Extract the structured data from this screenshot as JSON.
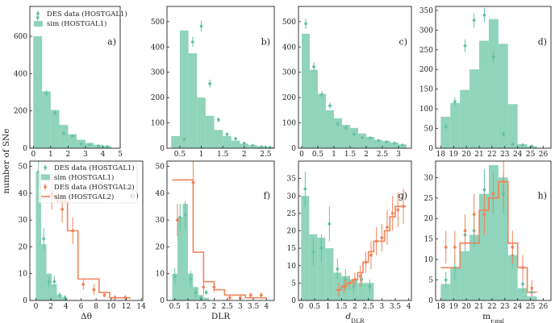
{
  "colors": {
    "green": "#66c2a5",
    "hist": "#8fd4bb",
    "orange": "#f0845a"
  },
  "ylabel": "number of SNe",
  "legend_top": [
    "DES data (HOSTGAL1)",
    "sim (HOSTGAL1)"
  ],
  "legend_bottom": [
    "DES data (HOSTGAL1)",
    "sim (HOSTGAL1)",
    "DES data (HOSTGAL2)",
    "sim (HOSTGAL2)"
  ],
  "chart_data": [
    {
      "id": "a",
      "type": "bar",
      "panel_label": "a)",
      "xlabel": "",
      "xlim": [
        -0.2,
        5.0
      ],
      "ylim": [
        0,
        760
      ],
      "xticks": [
        0,
        1,
        2,
        3,
        4,
        5
      ],
      "yticks": [
        0,
        200,
        400,
        600
      ],
      "hist1": {
        "edges": [
          0,
          0.5,
          1,
          1.5,
          2,
          2.5,
          3,
          3.5,
          4,
          4.5
        ],
        "values": [
          600,
          305,
          205,
          125,
          75,
          45,
          28,
          18,
          12
        ]
      },
      "data1": {
        "x": [
          0.25,
          0.75,
          1.25,
          1.75,
          2.25,
          2.75,
          3.25,
          3.75,
          4.25
        ],
        "y": [
          700,
          295,
          190,
          80,
          65,
          22,
          20,
          12,
          8
        ],
        "err": [
          20,
          17,
          14,
          9,
          8,
          5,
          4,
          4,
          3
        ]
      },
      "legend": "top"
    },
    {
      "id": "b",
      "type": "bar",
      "panel_label": "b)",
      "xlabel": "",
      "xlim": [
        0.2,
        2.7
      ],
      "ylim": [
        0,
        560
      ],
      "xticks": [
        0.5,
        1.0,
        1.5,
        2.0,
        2.5
      ],
      "yticks": [
        0,
        100,
        200,
        300,
        400,
        500
      ],
      "hist1": {
        "edges": [
          0.3,
          0.5,
          0.7,
          0.9,
          1.1,
          1.3,
          1.5,
          1.7,
          1.9,
          2.1,
          2.3,
          2.5,
          2.7
        ],
        "values": [
          48,
          465,
          375,
          200,
          128,
          72,
          48,
          30,
          18,
          12,
          8,
          5
        ]
      },
      "data1": {
        "x": [
          0.6,
          0.8,
          1.0,
          1.2,
          1.4,
          1.6,
          1.8,
          2.0,
          2.2,
          2.4,
          2.6
        ],
        "y": [
          35,
          420,
          482,
          255,
          112,
          55,
          38,
          20,
          10,
          5,
          3
        ],
        "err": [
          6,
          20,
          22,
          16,
          11,
          7,
          6,
          5,
          3,
          2,
          2
        ]
      }
    },
    {
      "id": "c",
      "type": "bar",
      "panel_label": "c)",
      "xlabel": "",
      "xlim": [
        -0.1,
        3.4
      ],
      "ylim": [
        0,
        560
      ],
      "xticks": [
        0.0,
        0.5,
        1.0,
        1.5,
        2.0,
        2.5,
        3.0
      ],
      "yticks": [
        0,
        100,
        200,
        300,
        400,
        500
      ],
      "hist1": {
        "edges": [
          0,
          0.25,
          0.5,
          0.75,
          1.0,
          1.25,
          1.5,
          1.75,
          2.0,
          2.25,
          2.5,
          2.75,
          3.0,
          3.25
        ],
        "values": [
          452,
          310,
          215,
          150,
          118,
          92,
          80,
          58,
          45,
          33,
          28,
          22,
          15
        ]
      },
      "data1": {
        "x": [
          0.125,
          0.375,
          0.625,
          0.875,
          1.125,
          1.375,
          1.625,
          1.875,
          2.125,
          2.375,
          2.625,
          2.875,
          3.125
        ],
        "y": [
          492,
          322,
          212,
          168,
          95,
          80,
          55,
          42,
          40,
          30,
          25,
          20,
          12
        ],
        "err": [
          22,
          18,
          14,
          13,
          10,
          9,
          7,
          6,
          6,
          5,
          5,
          4,
          3
        ]
      }
    },
    {
      "id": "d",
      "type": "bar",
      "panel_label": "d)",
      "xlabel": "",
      "xlim": [
        17.6,
        26.6
      ],
      "ylim": [
        0,
        360
      ],
      "xticks": [
        18,
        19,
        20,
        21,
        22,
        23,
        24,
        25,
        26
      ],
      "yticks": [
        0,
        50,
        100,
        150,
        200,
        250,
        300,
        350
      ],
      "hist1": {
        "edges": [
          18,
          18.75,
          19.5,
          20.25,
          21.0,
          21.75,
          22.5,
          23.25,
          24.0,
          24.75,
          25.5
        ],
        "values": [
          80,
          115,
          148,
          200,
          273,
          328,
          265,
          112,
          10,
          5
        ]
      },
      "data1": {
        "x": [
          18.4,
          19.1,
          19.9,
          20.6,
          21.4,
          22.1,
          22.9,
          23.6,
          24.4,
          25.1
        ],
        "y": [
          55,
          118,
          260,
          325,
          338,
          232,
          35,
          10,
          8,
          5
        ],
        "err": [
          8,
          11,
          16,
          18,
          18,
          15,
          6,
          3,
          3,
          2
        ]
      }
    },
    {
      "id": "e",
      "type": "bar",
      "panel_label": "e)",
      "xlabel": "Δθ",
      "xlim": [
        -0.8,
        14.2
      ],
      "ylim": [
        0,
        52
      ],
      "xticks": [
        0,
        2,
        4,
        6,
        8,
        10,
        12,
        14
      ],
      "yticks": [
        0,
        10,
        20,
        30,
        40,
        50
      ],
      "hist1": {
        "edges": [
          0,
          0.7,
          1.4,
          2.1,
          2.8,
          3.5,
          4.2
        ],
        "values": [
          48,
          21,
          10,
          6,
          2,
          1
        ]
      },
      "data1": {
        "x": [
          0.35,
          1.05,
          1.75,
          2.45,
          3.15,
          3.85
        ],
        "y": [
          48,
          23,
          7,
          7,
          2,
          1
        ],
        "err": [
          6,
          4,
          2,
          2,
          1,
          1
        ]
      },
      "hist2": {
        "edges": [
          1.4,
          2.8,
          4.2,
          5.6,
          7.0,
          8.4,
          9.8,
          11.2,
          12.6
        ],
        "values": [
          39,
          37,
          26,
          8,
          8,
          3,
          1,
          1
        ]
      },
      "data2": {
        "x": [
          2.1,
          3.5,
          4.9,
          6.3,
          7.7,
          9.1,
          10.5,
          11.9
        ],
        "y": [
          40,
          34,
          26,
          6,
          4,
          2,
          1,
          1
        ],
        "err": [
          6,
          5,
          5,
          2,
          2,
          1,
          1,
          1
        ]
      },
      "legend": "bottom"
    },
    {
      "id": "f",
      "type": "bar",
      "panel_label": "f)",
      "xlabel": "DLR",
      "xlim": [
        0.2,
        4.3
      ],
      "ylim": [
        0,
        52
      ],
      "xticks": [
        0.5,
        1.0,
        1.5,
        2.0,
        2.5,
        3.0,
        3.5,
        4.0
      ],
      "yticks": [
        0,
        10,
        20,
        30,
        40,
        50
      ],
      "hist1": {
        "edges": [
          0.4,
          0.6,
          0.8,
          1.0,
          1.2,
          1.4,
          1.6,
          1.8
        ],
        "values": [
          10,
          31,
          36,
          10,
          5,
          2,
          1
        ]
      },
      "data1": {
        "x": [
          0.5,
          0.7,
          0.9,
          1.1,
          1.3,
          1.5,
          1.7
        ],
        "y": [
          9,
          31,
          32,
          8,
          3,
          1,
          3
        ],
        "err": [
          3,
          5,
          5,
          3,
          2,
          1,
          1
        ]
      },
      "hist2": {
        "edges": [
          0.4,
          0.8,
          1.2,
          1.6,
          2.0,
          2.4,
          2.8,
          3.2,
          3.6,
          4.0
        ],
        "values": [
          45,
          45,
          18,
          7,
          4,
          2,
          2,
          1,
          1
        ]
      },
      "data2": {
        "x": [
          0.6,
          1.2,
          1.6,
          2.0,
          2.6,
          3.0,
          3.4,
          3.8
        ],
        "y": [
          30,
          44,
          5,
          5,
          1,
          1,
          2,
          2
        ],
        "err": [
          6,
          8,
          3,
          2,
          1,
          1,
          1,
          1
        ]
      }
    },
    {
      "id": "g",
      "type": "bar",
      "panel_label": "g)",
      "xlabel": "d_DLR",
      "xlim": [
        -0.1,
        4.1
      ],
      "ylim": [
        0,
        40
      ],
      "xticks": [
        0.0,
        0.5,
        1.0,
        1.5,
        2.0,
        2.5,
        3.0,
        3.5,
        4.0
      ],
      "yticks": [
        0,
        5,
        10,
        15,
        20,
        25,
        30,
        35
      ],
      "hist1": {
        "edges": [
          0,
          0.3,
          0.6,
          0.9,
          1.2,
          1.5,
          1.8,
          2.1,
          2.4,
          2.7
        ],
        "values": [
          30,
          19,
          18,
          15,
          8,
          7,
          6,
          5,
          5
        ]
      },
      "data1": {
        "x": [
          0.15,
          0.45,
          0.75,
          1.05,
          1.35,
          1.65,
          1.95,
          2.25,
          2.55
        ],
        "y": [
          32,
          14,
          15,
          22,
          9,
          6,
          4,
          6,
          4
        ],
        "err": [
          5,
          4,
          4,
          5,
          3,
          3,
          2,
          2,
          2
        ]
      },
      "hist2": {
        "edges": [
          1.3,
          1.5,
          1.7,
          1.9,
          2.1,
          2.3,
          2.5,
          2.7,
          2.9,
          3.1,
          3.3,
          3.5,
          3.7,
          3.9
        ],
        "values": [
          3,
          4,
          5,
          6,
          8,
          11,
          14,
          17,
          17,
          20,
          24,
          27,
          27
        ]
      },
      "data2": {
        "x": [
          1.4,
          1.6,
          1.8,
          2.0,
          2.2,
          2.4,
          2.6,
          2.8,
          3.0,
          3.2,
          3.4,
          3.6,
          3.8
        ],
        "y": [
          3,
          4,
          5,
          6,
          7,
          11,
          13,
          17,
          18,
          21,
          25,
          26,
          27
        ],
        "err": [
          2,
          2,
          2,
          2,
          3,
          3,
          4,
          4,
          4,
          5,
          5,
          5,
          5
        ]
      }
    },
    {
      "id": "h",
      "type": "bar",
      "panel_label": "h)",
      "xlabel": "m_r,gal",
      "xlim": [
        17.6,
        26.6
      ],
      "ylim": [
        0,
        34
      ],
      "xticks": [
        18,
        19,
        20,
        21,
        22,
        23,
        24,
        25,
        26
      ],
      "yticks": [
        0,
        5,
        10,
        15,
        20,
        25,
        30
      ],
      "hist1": {
        "edges": [
          18,
          18.75,
          19.5,
          20.25,
          21.0,
          21.75,
          22.5,
          23.25,
          24.0,
          24.75,
          25.5
        ],
        "values": [
          4,
          8,
          12,
          16,
          26,
          33,
          30,
          11,
          3,
          1
        ]
      },
      "data1": {
        "x": [
          18.4,
          19.1,
          19.9,
          20.6,
          21.4,
          22.1,
          22.9,
          23.6,
          24.4,
          25.1
        ],
        "y": [
          5,
          8,
          16,
          17,
          27,
          26,
          26,
          11,
          4,
          2
        ],
        "err": [
          2,
          3,
          4,
          4,
          5,
          5,
          5,
          3,
          2,
          1
        ]
      },
      "hist2": {
        "edges": [
          18,
          18.75,
          19.5,
          20.25,
          21.0,
          21.75,
          22.5,
          23.25,
          24.0,
          24.75,
          25.5
        ],
        "values": [
          8,
          8,
          14,
          14,
          22,
          25,
          29,
          14,
          8,
          2
        ]
      },
      "data2": {
        "x": [
          18.4,
          19.1,
          19.9,
          20.6,
          21.4,
          22.1,
          22.9,
          23.6,
          24.4,
          25.1
        ],
        "y": [
          13,
          13,
          17,
          21,
          21,
          26,
          29,
          13,
          8,
          3
        ],
        "err": [
          4,
          4,
          4,
          5,
          5,
          5,
          6,
          4,
          3,
          2
        ]
      }
    }
  ]
}
